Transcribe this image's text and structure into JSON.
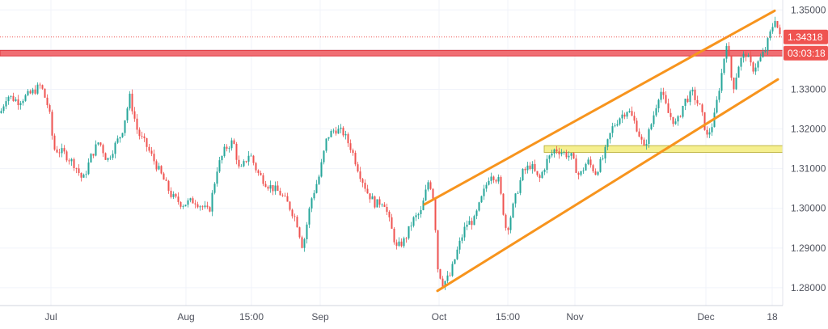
{
  "chart_data": {
    "type": "candlestick",
    "y_ticks": [
      "1.35000",
      "1.34000",
      "1.33000",
      "1.32000",
      "1.31000",
      "1.30000",
      "1.29000",
      "1.28000"
    ],
    "y_tick_values": [
      1.35,
      1.34,
      1.33,
      1.32,
      1.31,
      1.3,
      1.29,
      1.28
    ],
    "ylim": [
      1.2755,
      1.3525
    ],
    "x_ticks": [
      "Jul",
      "Aug",
      "15:00",
      "Sep",
      "Oct",
      "15:00",
      "Nov",
      "Dec",
      "18"
    ],
    "current_price": {
      "value": 1.34318,
      "label": "1.34318"
    },
    "countdown": {
      "label": "03:03:18",
      "level": 1.3391
    },
    "resistance_band": {
      "low": 1.3384,
      "high": 1.3398
    },
    "support_band": {
      "low": 1.3141,
      "high": 1.3158
    },
    "channel": {
      "upper": {
        "start": 1.301,
        "end": 1.3498
      },
      "lower": {
        "start": 1.2792,
        "end": 1.3325
      }
    },
    "colors": {
      "up": "#26a69a",
      "down": "#ef5350",
      "channel": "#f7941d",
      "resistance": "#f06e73",
      "support": "#f5ef8f",
      "price_tag": "#ef5350"
    }
  }
}
